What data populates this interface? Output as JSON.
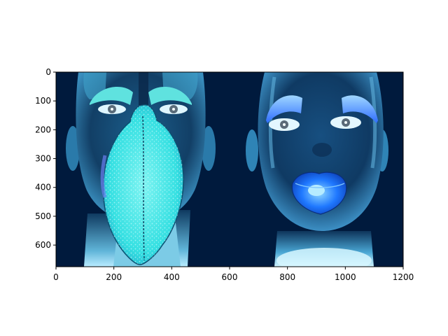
{
  "chart_data": {
    "type": "image",
    "xlim": [
      0,
      1200
    ],
    "ylim": [
      675,
      0
    ],
    "x_ticks": [
      0,
      200,
      400,
      600,
      800,
      1000,
      1200
    ],
    "y_ticks": [
      0,
      100,
      200,
      300,
      400,
      500,
      600
    ],
    "x_tick_labels": [
      "0",
      "200",
      "400",
      "600",
      "800",
      "1000",
      "1200"
    ],
    "y_tick_labels": [
      "0",
      "100",
      "200",
      "300",
      "400",
      "500",
      "600"
    ],
    "grid": false,
    "image_content": "two-faces-inverted-colors",
    "colors": {
      "background": "#001a3d",
      "skin_dark": "#0d3c63",
      "skin_mid": "#2a7dab",
      "skin_light": "#8fd0ea",
      "neck_glow": "#c9f2ff",
      "cyan_mask": "#3fe6e8",
      "lips_blue": "#1a6bff",
      "brow_blue": "#3c7bff"
    }
  }
}
